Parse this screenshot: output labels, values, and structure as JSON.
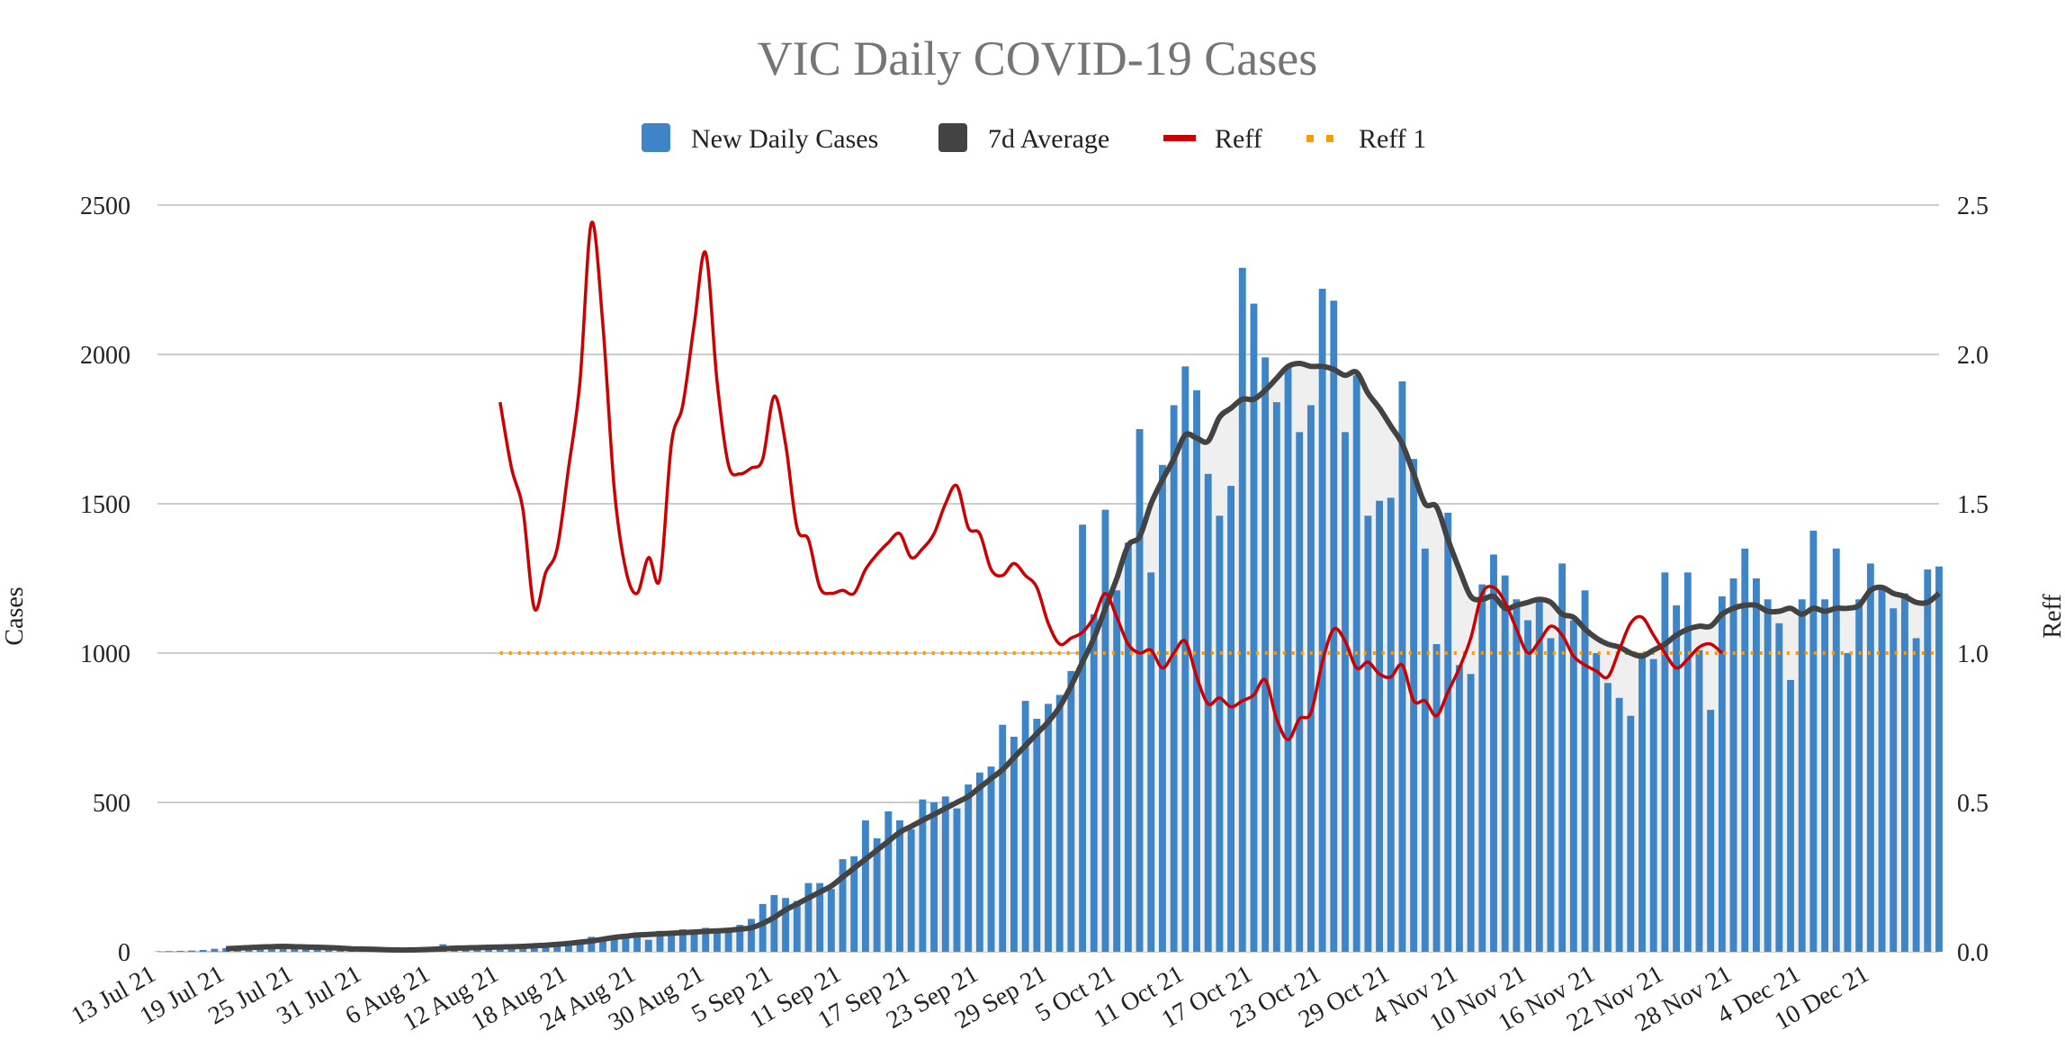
{
  "chart_data": {
    "type": "bar+line",
    "title": "VIC Daily COVID-19 Cases",
    "ylabel": "Cases",
    "y2label": "Reff",
    "ylim": [
      0,
      2500
    ],
    "y2lim": [
      0,
      2.5
    ],
    "yticks": [
      "0",
      "500",
      "1000",
      "1500",
      "2000",
      "2500"
    ],
    "y2ticks": [
      "0.0",
      "0.5",
      "1.0",
      "1.5",
      "2.0",
      "2.5"
    ],
    "legend": [
      "New Daily Cases",
      "7d Average",
      "Reff",
      "Reff 1"
    ],
    "colors": {
      "bars": "#3d85c6",
      "avg": "#434343",
      "reff": "#cc0000",
      "reff1": "#ff9900",
      "fill": "#efefef"
    },
    "x_start": "13 Jul 21",
    "n_days": 157,
    "xticks": [
      {
        "i": 0,
        "label": "13 Jul 21"
      },
      {
        "i": 6,
        "label": "19 Jul 21"
      },
      {
        "i": 12,
        "label": "25 Jul 21"
      },
      {
        "i": 18,
        "label": "31 Jul 21"
      },
      {
        "i": 24,
        "label": "6 Aug 21"
      },
      {
        "i": 30,
        "label": "12 Aug 21"
      },
      {
        "i": 36,
        "label": "18 Aug 21"
      },
      {
        "i": 42,
        "label": "24 Aug 21"
      },
      {
        "i": 48,
        "label": "30 Aug 21"
      },
      {
        "i": 54,
        "label": "5 Sep 21"
      },
      {
        "i": 60,
        "label": "11 Sep 21"
      },
      {
        "i": 66,
        "label": "17 Sep 21"
      },
      {
        "i": 72,
        "label": "23 Sep 21"
      },
      {
        "i": 78,
        "label": "29 Sep 21"
      },
      {
        "i": 84,
        "label": "5 Oct 21"
      },
      {
        "i": 90,
        "label": "11 Oct 21"
      },
      {
        "i": 96,
        "label": "17 Oct 21"
      },
      {
        "i": 102,
        "label": "23 Oct 21"
      },
      {
        "i": 108,
        "label": "29 Oct 21"
      },
      {
        "i": 114,
        "label": "4 Nov 21"
      },
      {
        "i": 120,
        "label": "10 Nov 21"
      },
      {
        "i": 126,
        "label": "16 Nov 21"
      },
      {
        "i": 132,
        "label": "22 Nov 21"
      },
      {
        "i": 138,
        "label": "28 Nov 21"
      },
      {
        "i": 144,
        "label": "4 Dec 21"
      },
      {
        "i": 150,
        "label": "10 Dec 21"
      }
    ],
    "new_daily_cases": [
      1,
      2,
      3,
      4,
      6,
      10,
      12,
      15,
      18,
      20,
      22,
      20,
      18,
      16,
      14,
      12,
      10,
      8,
      6,
      5,
      4,
      4,
      5,
      8,
      14,
      25,
      15,
      10,
      12,
      15,
      18,
      20,
      22,
      24,
      25,
      28,
      30,
      40,
      50,
      45,
      55,
      60,
      65,
      40,
      70,
      65,
      75,
      70,
      80,
      70,
      80,
      90,
      110,
      160,
      190,
      180,
      170,
      230,
      230,
      210,
      310,
      320,
      440,
      380,
      470,
      440,
      410,
      510,
      500,
      520,
      480,
      560,
      600,
      620,
      760,
      720,
      840,
      780,
      830,
      860,
      940,
      1430,
      1130,
      1480,
      1210,
      1370,
      1750,
      1270,
      1630,
      1830,
      1960,
      1880,
      1600,
      1460,
      1560,
      2290,
      2170,
      1990,
      1840,
      1960,
      1740,
      1830,
      2220,
      2180,
      1740,
      1930,
      1460,
      1510,
      1520,
      1910,
      1650,
      1350,
      1030,
      1470,
      960,
      930,
      1230,
      1330,
      1260,
      1180,
      1110,
      1180,
      1050,
      1300,
      1110,
      1210,
      1000,
      900,
      850,
      790,
      1000,
      980,
      1270,
      1160,
      1270,
      1010,
      810,
      1190,
      1250,
      1350,
      1250,
      1180,
      1100,
      910,
      1180,
      1410,
      1180,
      1350,
      1000,
      1180,
      1300,
      1220,
      1150,
      1200,
      1050,
      1280,
      1290
    ],
    "avg_7d": [
      null,
      null,
      null,
      null,
      null,
      null,
      10,
      12,
      14,
      16,
      17,
      18,
      17,
      16,
      15,
      14,
      12,
      10,
      9,
      8,
      7,
      6,
      6,
      7,
      8,
      10,
      12,
      13,
      14,
      15,
      16,
      17,
      18,
      20,
      22,
      25,
      28,
      32,
      36,
      42,
      48,
      52,
      56,
      58,
      60,
      62,
      64,
      66,
      68,
      70,
      72,
      76,
      80,
      95,
      115,
      140,
      160,
      180,
      200,
      220,
      250,
      280,
      310,
      340,
      370,
      400,
      420,
      440,
      460,
      480,
      500,
      520,
      550,
      580,
      610,
      650,
      690,
      730,
      770,
      820,
      890,
      970,
      1050,
      1150,
      1250,
      1360,
      1390,
      1500,
      1580,
      1650,
      1730,
      1720,
      1710,
      1790,
      1820,
      1850,
      1850,
      1880,
      1920,
      1960,
      1970,
      1960,
      1960,
      1950,
      1930,
      1940,
      1870,
      1820,
      1760,
      1700,
      1600,
      1500,
      1490,
      1380,
      1280,
      1190,
      1180,
      1190,
      1150,
      1160,
      1170,
      1180,
      1170,
      1130,
      1120,
      1080,
      1050,
      1030,
      1020,
      1000,
      990,
      1010,
      1030,
      1060,
      1080,
      1090,
      1090,
      1130,
      1150,
      1160,
      1160,
      1140,
      1140,
      1150,
      1130,
      1150,
      1140,
      1150,
      1150,
      1160,
      1210,
      1220,
      1200,
      1190,
      1170,
      1170,
      1200
    ],
    "reff": [
      null,
      null,
      null,
      null,
      null,
      null,
      null,
      null,
      null,
      null,
      null,
      null,
      null,
      null,
      null,
      null,
      null,
      null,
      null,
      null,
      null,
      null,
      null,
      null,
      null,
      null,
      null,
      null,
      null,
      null,
      1.84,
      1.62,
      1.48,
      1.15,
      1.27,
      1.35,
      1.62,
      1.91,
      2.44,
      2.1,
      1.55,
      1.28,
      1.2,
      1.32,
      1.25,
      1.7,
      1.83,
      2.1,
      2.34,
      1.91,
      1.63,
      1.6,
      1.62,
      1.65,
      1.86,
      1.7,
      1.42,
      1.38,
      1.22,
      1.2,
      1.21,
      1.2,
      1.28,
      1.33,
      1.37,
      1.4,
      1.32,
      1.35,
      1.4,
      1.5,
      1.56,
      1.42,
      1.4,
      1.28,
      1.26,
      1.3,
      1.26,
      1.22,
      1.1,
      1.03,
      1.05,
      1.07,
      1.12,
      1.2,
      1.12,
      1.03,
      1.0,
      1.01,
      0.95,
      1.0,
      1.04,
      0.92,
      0.83,
      0.85,
      0.82,
      0.84,
      0.86,
      0.91,
      0.78,
      0.71,
      0.78,
      0.8,
      0.97,
      1.08,
      1.04,
      0.95,
      0.97,
      0.93,
      0.92,
      0.96,
      0.84,
      0.84,
      0.79,
      0.87,
      0.95,
      1.05,
      1.2,
      1.22,
      1.17,
      1.08,
      1.0,
      1.04,
      1.09,
      1.06,
      0.99,
      0.96,
      0.94,
      0.92,
      1.01,
      1.1,
      1.12,
      1.06,
      1.0,
      0.95,
      0.98,
      1.02,
      1.03,
      1.0
    ],
    "reff_1_value": 1.0,
    "reff_1_start_index": 30
  }
}
